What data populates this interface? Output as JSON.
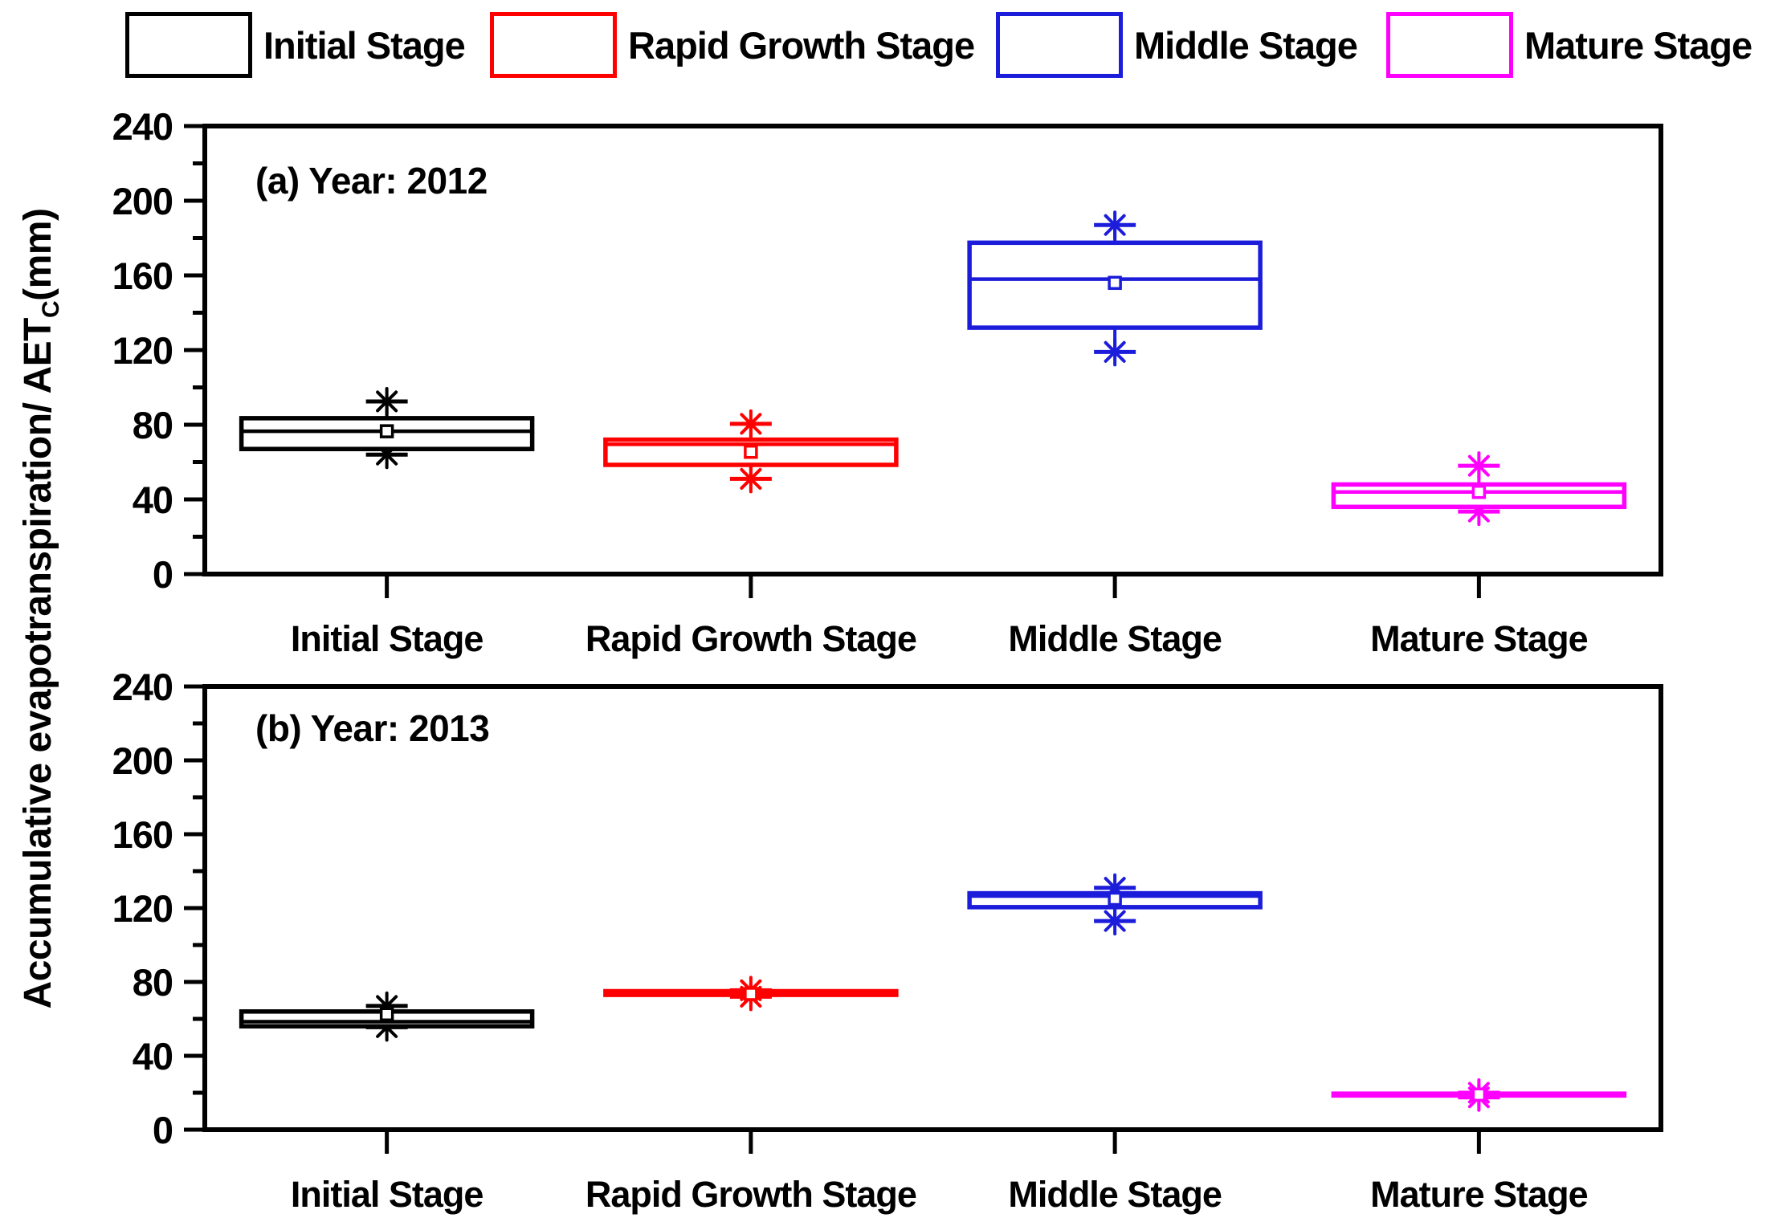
{
  "page": {
    "background": "#ffffff"
  },
  "legend": {
    "items": [
      {
        "label": "Initial Stage",
        "color": "#000000"
      },
      {
        "label": "Rapid Growth Stage",
        "color": "#FF0000"
      },
      {
        "label": "Middle Stage",
        "color": "#1C1CDB"
      },
      {
        "label": "Mature Stage",
        "color": "#FF00FF"
      }
    ]
  },
  "y_axis": {
    "label_main": "Accumulative evapotranspiration/ AET",
    "label_sub": "C",
    "label_unit": "(mm)"
  },
  "chart_data": {
    "type": "box",
    "grid": false,
    "stage_colors": [
      "#000000",
      "#FF0000",
      "#1C1CDB",
      "#FF00FF"
    ],
    "categories": [
      "Initial Stage",
      "Rapid Growth Stage",
      "Middle Stage",
      "Mature Stage"
    ],
    "axis": {
      "ylim": [
        0,
        240
      ],
      "yticks": [
        0,
        40,
        80,
        120,
        160,
        200,
        240
      ],
      "minor_step": 20
    },
    "panels": [
      {
        "id": "a",
        "title": "(a) Year: 2012",
        "boxes": [
          {
            "stage": "Initial Stage",
            "whisker_low": 64,
            "q1": 67,
            "median": 76.5,
            "q3": 83.5,
            "whisker_high": 92.5,
            "mean": 76.5
          },
          {
            "stage": "Rapid Growth Stage",
            "whisker_low": 51,
            "q1": 58.5,
            "median": 69.5,
            "q3": 72,
            "whisker_high": 80.5,
            "mean": 65.5
          },
          {
            "stage": "Middle Stage",
            "whisker_low": 119,
            "q1": 132,
            "median": 158,
            "q3": 177.5,
            "whisker_high": 187,
            "mean": 156
          },
          {
            "stage": "Mature Stage",
            "whisker_low": 33.5,
            "q1": 36,
            "median": 44,
            "q3": 48,
            "whisker_high": 58,
            "mean": 44
          }
        ]
      },
      {
        "id": "b",
        "title": "(b) Year: 2013",
        "boxes": [
          {
            "stage": "Initial Stage",
            "whisker_low": 55.5,
            "q1": 56,
            "median": 58.5,
            "q3": 64,
            "whisker_high": 67,
            "mean": 62.5
          },
          {
            "stage": "Rapid Growth Stage",
            "whisker_low": 72,
            "q1": 73,
            "median": 74,
            "q3": 75,
            "whisker_high": 75.5,
            "mean": 73.5
          },
          {
            "stage": "Middle Stage",
            "whisker_low": 113,
            "q1": 120.5,
            "median": 126.5,
            "q3": 128,
            "whisker_high": 131,
            "mean": 125
          },
          {
            "stage": "Mature Stage",
            "whisker_low": 17.5,
            "q1": 18.5,
            "median": 19,
            "q3": 19.5,
            "whisker_high": 20,
            "mean": 19
          }
        ]
      }
    ]
  }
}
